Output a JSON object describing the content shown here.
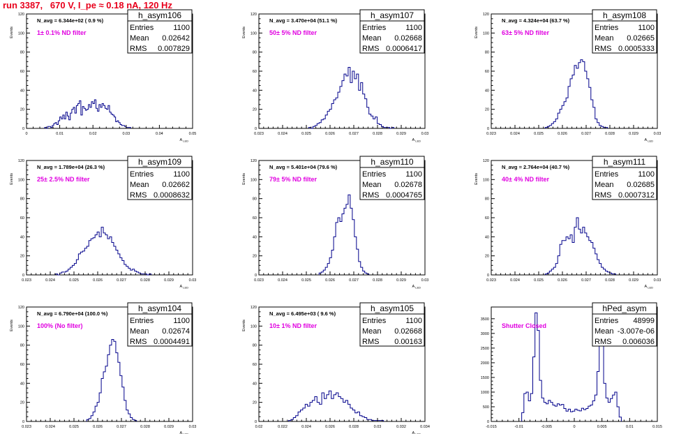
{
  "page": {
    "title": "run 3387,   670 V, I_pe ≈ 0.18 nA, 120 Hz"
  },
  "stats_labels": {
    "entries": "Entries",
    "mean": "Mean",
    "rms": "RMS"
  },
  "colors": {
    "title": "#e8001c",
    "filter_label": "#e000e0",
    "histogram": "#00008b",
    "frame": "#000000"
  },
  "chart_data": [
    {
      "type": "histogram",
      "name": "h_asym106",
      "navg": "N_avg = 6.344e+02 ( 0.9 %)",
      "filter": "1± 0.1% ND filter",
      "stats": {
        "entries": "1100",
        "mean": "0.02642",
        "rms": "0.007829"
      },
      "ylabel": "Events",
      "xlabel": "A_LED",
      "xlim": [
        0,
        0.055
      ],
      "ylim": [
        0,
        120
      ],
      "xticks": [
        "0",
        "0.01",
        "0.02",
        "0.03",
        "0.04",
        "0.05"
      ],
      "yticks": [
        "0",
        "20",
        "40",
        "60",
        "80",
        "100",
        "120"
      ],
      "bins": {
        "x0": 0.006,
        "width": 0.0005,
        "values": [
          1,
          0,
          2,
          2,
          1,
          3,
          5,
          6,
          4,
          8,
          12,
          10,
          14,
          10,
          17,
          13,
          9,
          16,
          20,
          22,
          16,
          24,
          26,
          29,
          14,
          23,
          21,
          19,
          20,
          25,
          22,
          28,
          26,
          30,
          21,
          18,
          25,
          22,
          26,
          24,
          21,
          20,
          24,
          17,
          15,
          14,
          12,
          7,
          8,
          6,
          4,
          3,
          3,
          2,
          1,
          1,
          1
        ]
      }
    },
    {
      "type": "histogram",
      "name": "h_asym107",
      "navg": "N_avg = 3.470e+04 (51.1 %)",
      "filter": "50± 5% ND filter",
      "stats": {
        "entries": "1100",
        "mean": "0.02668",
        "rms": "0.0006417"
      },
      "ylabel": "Events",
      "xlabel": "A_LED",
      "xlim": [
        0.0225,
        0.0305
      ],
      "ylim": [
        0,
        120
      ],
      "xticks": [
        "0.023",
        "0.024",
        "0.025",
        "0.026",
        "0.027",
        "0.028",
        "0.029",
        "0.03"
      ],
      "yticks": [
        "0",
        "20",
        "40",
        "60",
        "80",
        "100",
        "120"
      ],
      "bins": {
        "x0": 0.0249,
        "width": 0.0001,
        "values": [
          1,
          0,
          2,
          3,
          5,
          6,
          9,
          10,
          14,
          18,
          20,
          26,
          30,
          32,
          38,
          44,
          50,
          57,
          55,
          64,
          48,
          60,
          52,
          57,
          40,
          48,
          36,
          31,
          22,
          15,
          13,
          10,
          12,
          5,
          4,
          2,
          1,
          1,
          1,
          0,
          1
        ]
      }
    },
    {
      "type": "histogram",
      "name": "h_asym108",
      "navg": "N_avg = 4.324e+04 (63.7 %)",
      "filter": "63± 5% ND filter",
      "stats": {
        "entries": "1100",
        "mean": "0.02665",
        "rms": "0.0005333"
      },
      "ylabel": "Events",
      "xlabel": "A_LED",
      "xlim": [
        0.0225,
        0.0305
      ],
      "ylim": [
        0,
        120
      ],
      "xticks": [
        "0.023",
        "0.024",
        "0.025",
        "0.026",
        "0.027",
        "0.028",
        "0.029",
        "0.03"
      ],
      "yticks": [
        "0",
        "20",
        "40",
        "60",
        "80",
        "100",
        "120"
      ],
      "bins": {
        "x0": 0.0251,
        "width": 0.0001,
        "values": [
          1,
          2,
          3,
          5,
          7,
          10,
          16,
          20,
          24,
          28,
          32,
          44,
          52,
          56,
          66,
          63,
          69,
          72,
          70,
          60,
          52,
          43,
          30,
          22,
          10,
          6,
          3,
          2,
          1,
          1
        ]
      }
    },
    {
      "type": "histogram",
      "name": "h_asym109",
      "navg": "N_avg = 1.789e+04 (26.3 %)",
      "filter": "25± 2.5% ND filter",
      "stats": {
        "entries": "1100",
        "mean": "0.02662",
        "rms": "0.0008632"
      },
      "ylabel": "Events",
      "xlabel": "A_LED",
      "xlim": [
        0.0225,
        0.0305
      ],
      "ylim": [
        0,
        120
      ],
      "xticks": [
        "0.023",
        "0.024",
        "0.025",
        "0.026",
        "0.027",
        "0.028",
        "0.029",
        "0.03"
      ],
      "yticks": [
        "0",
        "20",
        "40",
        "60",
        "80",
        "100",
        "120"
      ],
      "bins": {
        "x0": 0.0239,
        "width": 0.0001,
        "values": [
          1,
          0,
          2,
          3,
          3,
          4,
          6,
          8,
          10,
          12,
          16,
          22,
          24,
          25,
          28,
          30,
          36,
          38,
          39,
          42,
          45,
          40,
          50,
          44,
          42,
          38,
          40,
          34,
          30,
          26,
          22,
          18,
          15,
          11,
          9,
          7,
          5,
          6,
          4,
          3,
          2,
          1,
          1,
          1,
          0,
          1
        ]
      }
    },
    {
      "type": "histogram",
      "name": "h_asym110",
      "navg": "N_avg = 5.401e+04 (79.6 %)",
      "filter": "79± 5% ND filter",
      "stats": {
        "entries": "1100",
        "mean": "0.02678",
        "rms": "0.0004765"
      },
      "ylabel": "Events",
      "xlabel": "A_LED",
      "xlim": [
        0.0225,
        0.0305
      ],
      "ylim": [
        0,
        120
      ],
      "xticks": [
        "0.023",
        "0.024",
        "0.025",
        "0.026",
        "0.027",
        "0.028",
        "0.029",
        "0.03"
      ],
      "yticks": [
        "0",
        "20",
        "40",
        "60",
        "80",
        "100",
        "120"
      ],
      "bins": {
        "x0": 0.0254,
        "width": 0.0001,
        "values": [
          2,
          3,
          5,
          8,
          12,
          18,
          26,
          40,
          55,
          60,
          56,
          64,
          70,
          74,
          84,
          70,
          58,
          40,
          27,
          14,
          8,
          4,
          2,
          1
        ]
      }
    },
    {
      "type": "histogram",
      "name": "h_asym111",
      "navg": "N_avg = 2.764e+04 (40.7 %)",
      "filter": "40± 4% ND filter",
      "stats": {
        "entries": "1100",
        "mean": "0.02685",
        "rms": "0.0007312"
      },
      "ylabel": "Events",
      "xlabel": "A_LED",
      "xlim": [
        0.0225,
        0.0305
      ],
      "ylim": [
        0,
        120
      ],
      "xticks": [
        "0.023",
        "0.024",
        "0.025",
        "0.026",
        "0.027",
        "0.028",
        "0.029",
        "0.03"
      ],
      "yticks": [
        "0",
        "20",
        "40",
        "60",
        "80",
        "100",
        "120"
      ],
      "bins": {
        "x0": 0.0251,
        "width": 0.0001,
        "values": [
          1,
          2,
          4,
          6,
          8,
          12,
          20,
          32,
          36,
          36,
          40,
          38,
          42,
          34,
          50,
          60,
          48,
          44,
          50,
          44,
          40,
          36,
          34,
          28,
          22,
          16,
          12,
          8,
          6,
          4,
          3,
          2,
          1,
          1
        ]
      }
    },
    {
      "type": "histogram",
      "name": "h_asym104",
      "navg": "N_avg = 6.790e+04 (100.0 %)",
      "filter": "100% (No filter)",
      "stats": {
        "entries": "1100",
        "mean": "0.02674",
        "rms": "0.0004491"
      },
      "ylabel": "Events",
      "xlabel": "A_LED",
      "xlim": [
        0.0225,
        0.0305
      ],
      "ylim": [
        0,
        120
      ],
      "xticks": [
        "0.023",
        "0.024",
        "0.025",
        "0.026",
        "0.027",
        "0.028",
        "0.029",
        "0.03"
      ],
      "yticks": [
        "0",
        "20",
        "40",
        "60",
        "80",
        "100",
        "120"
      ],
      "bins": {
        "x0": 0.0254,
        "width": 0.0001,
        "values": [
          2,
          3,
          6,
          10,
          16,
          20,
          30,
          45,
          52,
          58,
          70,
          80,
          86,
          84,
          72,
          62,
          48,
          36,
          22,
          12,
          8,
          4,
          2,
          1
        ]
      }
    },
    {
      "type": "histogram",
      "name": "h_asym105",
      "navg": "N_avg = 6.495e+03 ( 9.6 %)",
      "filter": "10± 1% ND filter",
      "stats": {
        "entries": "1100",
        "mean": "0.02668",
        "rms": "0.00163"
      },
      "ylabel": "Events",
      "xlabel": "A_LED",
      "xlim": [
        0.02,
        0.034
      ],
      "ylim": [
        0,
        120
      ],
      "xticks": [
        "0.02",
        "0.022",
        "0.024",
        "0.026",
        "0.028",
        "0.03",
        "0.032",
        "0.034"
      ],
      "yticks": [
        "0",
        "20",
        "40",
        "60",
        "80",
        "100",
        "120"
      ],
      "bins": {
        "x0": 0.0225,
        "width": 0.0002,
        "values": [
          1,
          2,
          4,
          6,
          10,
          12,
          14,
          18,
          16,
          20,
          22,
          26,
          20,
          18,
          30,
          24,
          28,
          32,
          24,
          28,
          30,
          26,
          24,
          20,
          22,
          18,
          14,
          12,
          9,
          10,
          6,
          5,
          4,
          2,
          2,
          1,
          1,
          1,
          1,
          1
        ]
      }
    },
    {
      "type": "histogram",
      "name": "hPed_asym",
      "navg": "",
      "filter": "Shutter Closed",
      "stats": {
        "entries": "48999",
        "mean": "-3.007e-06",
        "rms": "0.006036"
      },
      "ylabel": "",
      "xlabel": "",
      "xlim": [
        -0.015,
        0.015
      ],
      "ylim": [
        0,
        3900
      ],
      "xticks": [
        "-0.015",
        "-0.01",
        "-0.005",
        "0",
        "0.005",
        "0.01",
        "0.015"
      ],
      "yticks": [
        "0",
        "500",
        "1000",
        "1500",
        "2000",
        "2500",
        "3000",
        "3500"
      ],
      "bins": {
        "x0": -0.0095,
        "width": 0.0004,
        "values": [
          300,
          950,
          1000,
          700,
          950,
          2200,
          3700,
          3100,
          1400,
          800,
          650,
          600,
          720,
          650,
          560,
          520,
          600,
          560,
          580,
          440,
          350,
          420,
          330,
          350,
          420,
          380,
          360,
          450,
          400,
          440,
          520,
          560,
          700,
          900,
          1700,
          2800,
          3000,
          1300,
          800,
          650,
          780,
          900,
          1000,
          500,
          150
        ]
      }
    }
  ]
}
